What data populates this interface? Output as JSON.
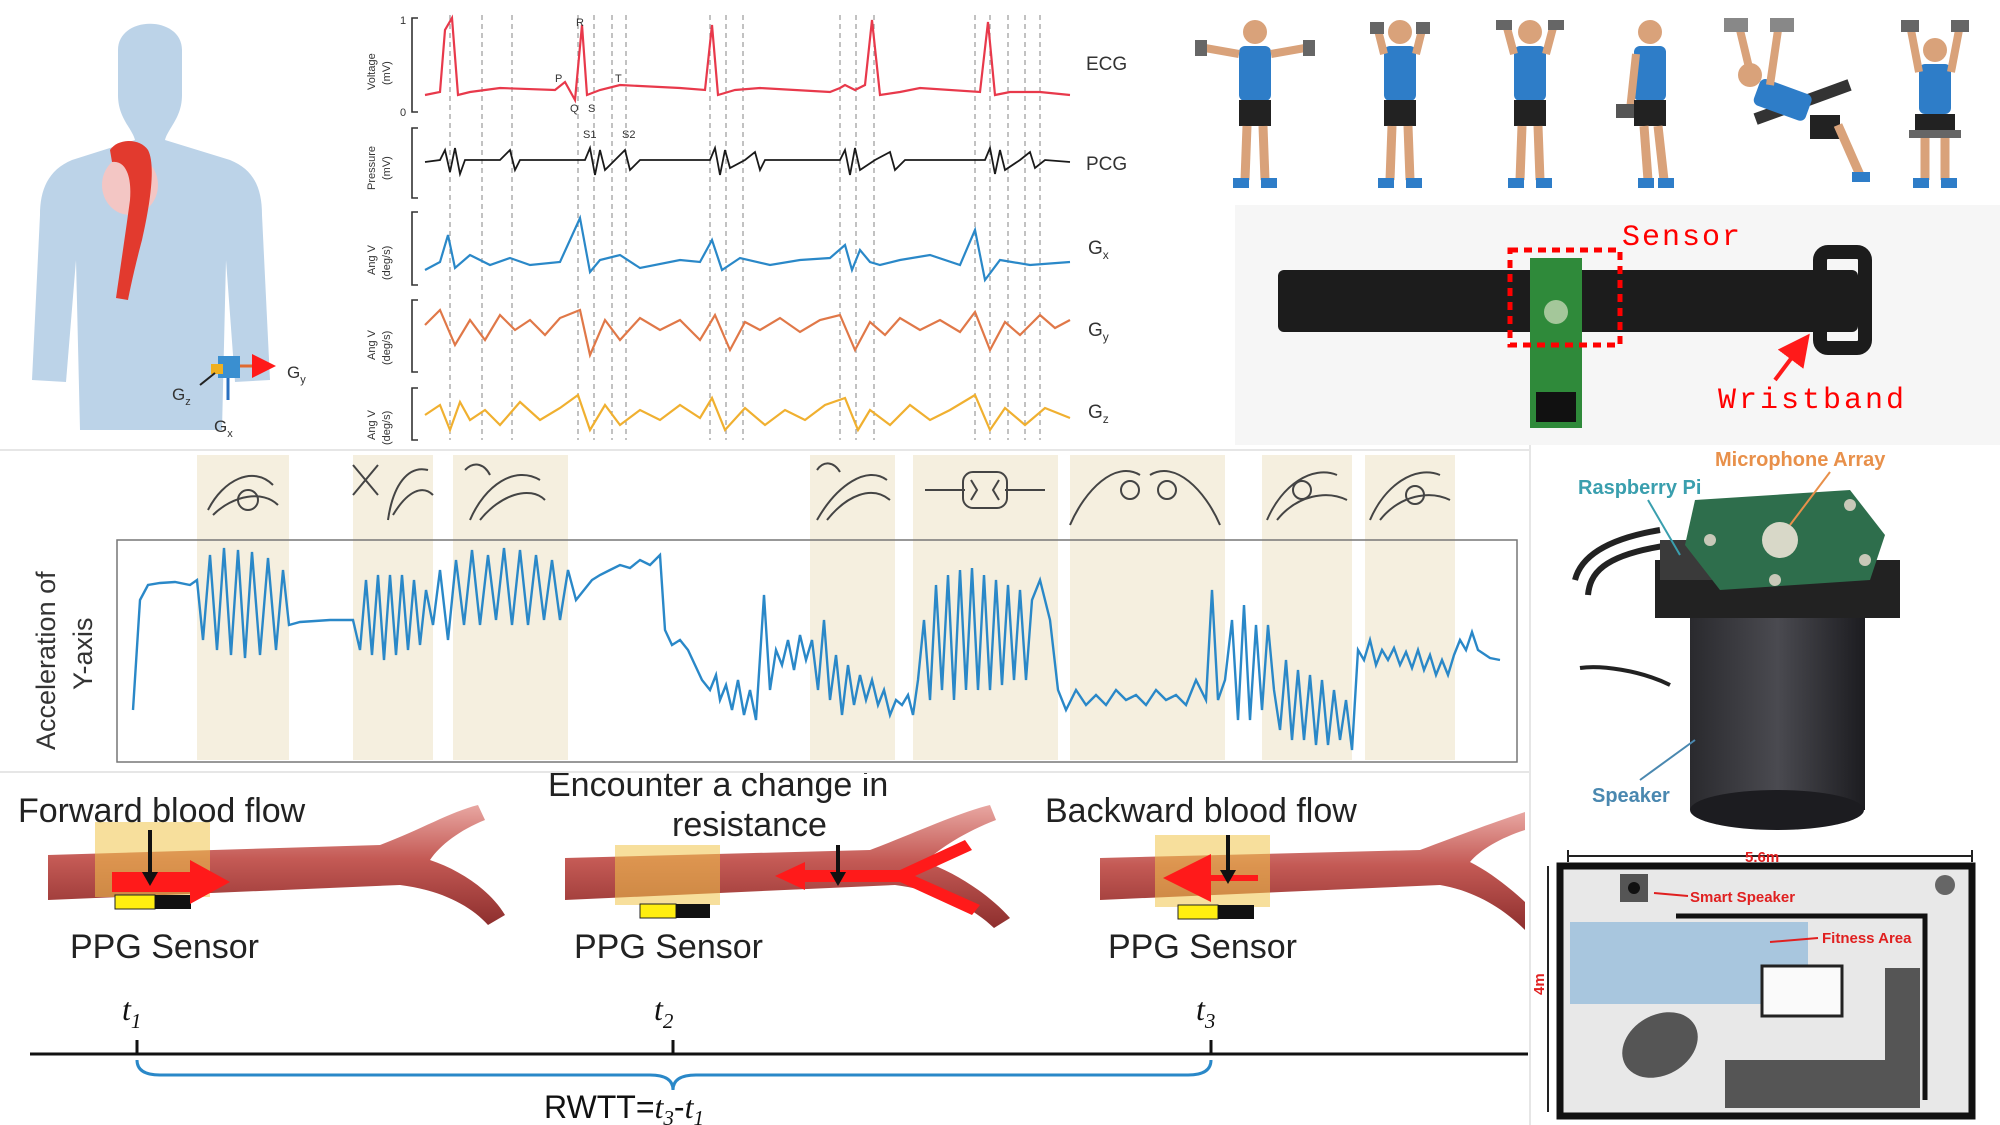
{
  "body_figure": {
    "axis_labels": [
      "G",
      "G",
      "G"
    ],
    "axis_subs": [
      "y",
      "z",
      "x"
    ]
  },
  "cardio_signals": {
    "traces": [
      {
        "name": "ECG",
        "ylabel_line1": "Voltage",
        "ylabel_line2": "(mV)",
        "color": "#e8394b"
      },
      {
        "name": "PCG",
        "ylabel_line1": "Pressure",
        "ylabel_line2": "(mV)",
        "color": "#1a1a1a"
      },
      {
        "name": "G",
        "sub": "x",
        "ylabel_line1": "Ang V",
        "ylabel_line2": "(deg/s)",
        "color": "#2a88c8"
      },
      {
        "name": "G",
        "sub": "y",
        "ylabel_line1": "Ang V",
        "ylabel_line2": "(deg/s)",
        "color": "#e07848"
      },
      {
        "name": "G",
        "sub": "z",
        "ylabel_line1": "Ang V",
        "ylabel_line2": "(deg/s)",
        "color": "#f0b030"
      }
    ],
    "tick_top": "1",
    "tick_bottom": "0",
    "ecg_markers": [
      "R",
      "P",
      "Q",
      "S",
      "T"
    ],
    "pcg_markers": [
      "S1",
      "S2"
    ]
  },
  "exercise_figures": {
    "count": 6
  },
  "wristband": {
    "sensor_label": "Sensor",
    "band_label": "Wristband",
    "label_color": "#ff0000"
  },
  "acceleration_chart": {
    "ylabel_line1": "Acceleration of",
    "ylabel_line2": "Y-axis",
    "line_color": "#2a88c8",
    "band_color": "#f5efdf",
    "gesture_icons": [
      "gesture-1",
      "gesture-2",
      "gesture-3",
      "gesture-4",
      "gesture-5",
      "gesture-6",
      "gesture-7",
      "gesture-8"
    ]
  },
  "smart_speaker": {
    "label_pi": "Raspberry Pi",
    "label_mic": "Microphone Array",
    "label_speaker": "Speaker",
    "pi_color": "#3a9fae",
    "mic_color": "#e8904a",
    "speaker_color": "#4a88b0"
  },
  "floor_plan": {
    "width": "5.6m",
    "height": "4m",
    "speaker_label": "Smart Speaker",
    "fitness_label": "Fitness Area",
    "accent": "#e02020"
  },
  "blood_flow": {
    "panels": [
      {
        "title": "Forward blood flow",
        "sensor": "PPG Sensor"
      },
      {
        "title_line1": "Encounter a change in",
        "title_line2": "resistance",
        "sensor": "PPG Sensor"
      },
      {
        "title": "Backward blood flow",
        "sensor": "PPG Sensor"
      }
    ],
    "timeline": {
      "t1": "t",
      "t1_sub": "1",
      "t2": "t",
      "t2_sub": "2",
      "t3": "t",
      "t3_sub": "3",
      "formula_a": "RWTT=",
      "formula_t3": "t",
      "formula_t3_sub": "3",
      "formula_minus": "-",
      "formula_t1": "t",
      "formula_t1_sub": "1"
    }
  }
}
